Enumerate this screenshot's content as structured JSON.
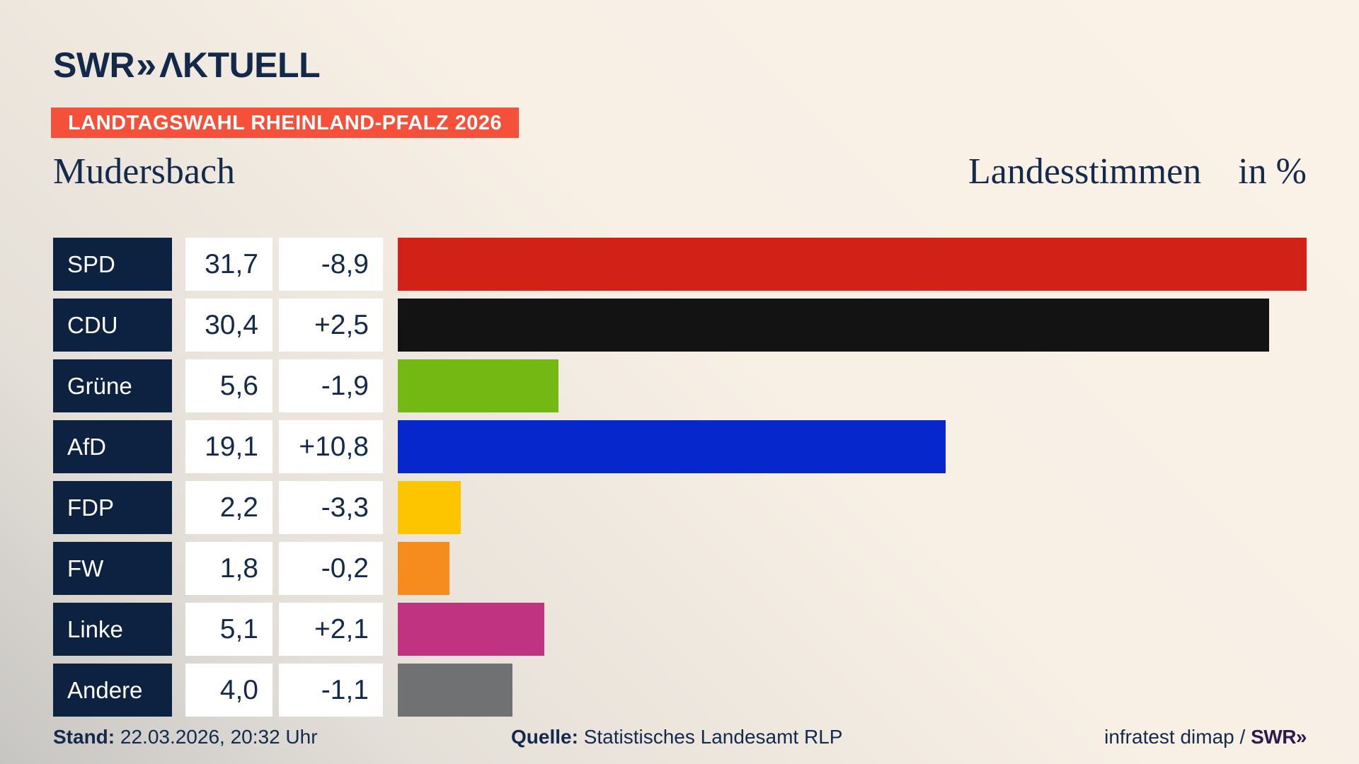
{
  "header": {
    "logo": {
      "swr": "SWR",
      "chevrons": "»",
      "aktuell": "ΛKTUELL"
    },
    "badge": "LANDTAGSWAHL RHEINLAND-PFALZ 2026",
    "title_left": "Mudersbach",
    "title_right": "Landesstimmen",
    "title_unit": "in %"
  },
  "chart_data": {
    "type": "bar",
    "orientation": "horizontal",
    "title": "Landtagswahl Rheinland-Pfalz 2026 — Mudersbach, Landesstimmen in %",
    "unit": "%",
    "axis_max": 31.7,
    "categories": [
      "SPD",
      "CDU",
      "Grüne",
      "AfD",
      "FDP",
      "FW",
      "Linke",
      "Andere"
    ],
    "rows": [
      {
        "party": "SPD",
        "value": 31.7,
        "value_label": "31,7",
        "change": -8.9,
        "change_label": "-8,9",
        "color": "#d22117"
      },
      {
        "party": "CDU",
        "value": 30.4,
        "value_label": "30,4",
        "change": 2.5,
        "change_label": "+2,5",
        "color": "#131313"
      },
      {
        "party": "Grüne",
        "value": 5.6,
        "value_label": "5,6",
        "change": -1.9,
        "change_label": "-1,9",
        "color": "#74b813"
      },
      {
        "party": "AfD",
        "value": 19.1,
        "value_label": "19,1",
        "change": 10.8,
        "change_label": "+10,8",
        "color": "#0627cc"
      },
      {
        "party": "FDP",
        "value": 2.2,
        "value_label": "2,2",
        "change": -3.3,
        "change_label": "-3,3",
        "color": "#fdc500"
      },
      {
        "party": "FW",
        "value": 1.8,
        "value_label": "1,8",
        "change": -0.2,
        "change_label": "-0,2",
        "color": "#f78c1e"
      },
      {
        "party": "Linke",
        "value": 5.1,
        "value_label": "5,1",
        "change": 2.1,
        "change_label": "+2,1",
        "color": "#c03380"
      },
      {
        "party": "Andere",
        "value": 4.0,
        "value_label": "4,0",
        "change": -1.1,
        "change_label": "-1,1",
        "color": "#707173"
      }
    ]
  },
  "footer": {
    "stand_label": "Stand:",
    "stand_value": "22.03.2026, 20:32 Uhr",
    "quelle_label": "Quelle:",
    "quelle_value": "Statistisches Landesamt RLP",
    "credit": "infratest dimap /",
    "credit_logo": "SWR»"
  },
  "colors": {
    "navy_text": "#132a4c",
    "party_box_bg": "#0d2140",
    "badge_bg": "#f4503a",
    "bg_top": "#faf2e7",
    "bg_bottom": "#c7c5c2",
    "credit_logo_color": "#2b1c4d"
  }
}
